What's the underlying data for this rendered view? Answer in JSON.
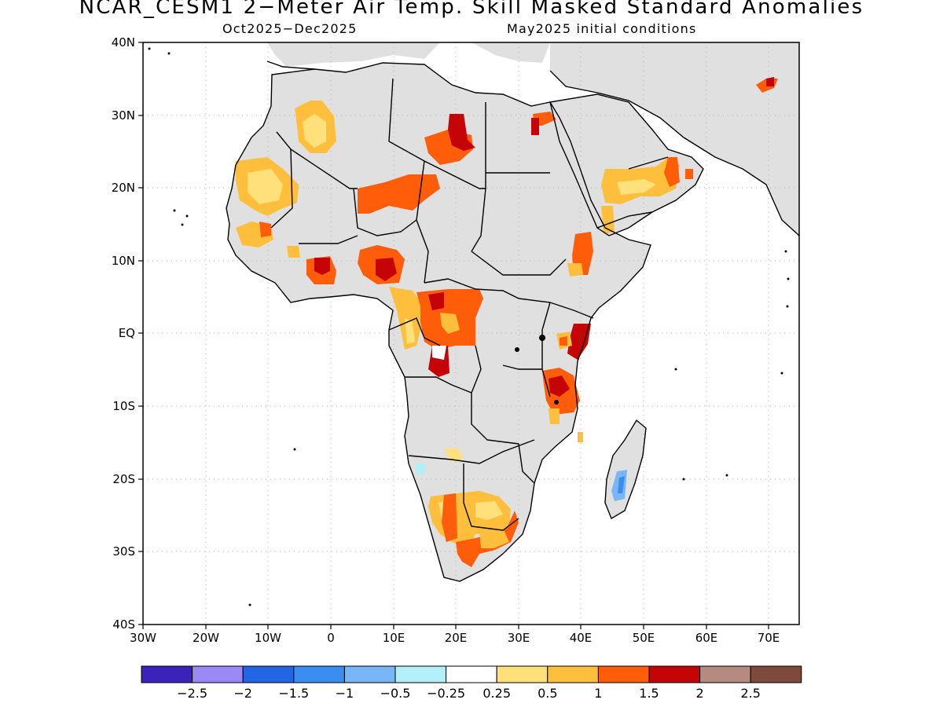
{
  "title": "NCAR_CESM1 2−Meter Air Temp. Skill Masked Standard Anomalies",
  "subtitle_left": "Oct2025−Dec2025",
  "subtitle_right": "May2025 initial conditions",
  "lat_labels": [
    "40N",
    "30N",
    "20N",
    "10N",
    "EQ",
    "10S",
    "20S",
    "30S",
    "40S"
  ],
  "lon_labels": [
    "30W",
    "20W",
    "10W",
    "0",
    "10E",
    "20E",
    "30E",
    "40E",
    "50E",
    "60E",
    "70E"
  ],
  "colorbar": {
    "colors": [
      "#3b22b8",
      "#9d89f5",
      "#2266e6",
      "#3a8ef0",
      "#79b6f7",
      "#b3eff8",
      "#ffffff",
      "#ffe07a",
      "#ffbe3b",
      "#ff5d0a",
      "#c40406",
      "#b58b80",
      "#7c4b3e"
    ],
    "labels": [
      "−2.5",
      "−2",
      "−1.5",
      "−1",
      "−0.5",
      "−0.25",
      "0.25",
      "0.5",
      "1",
      "1.5",
      "2",
      "2.5"
    ]
  },
  "map_colors": {
    "land": "#e0e0e0",
    "ocean": "#ffffff",
    "grid": "#b0b0b0",
    "border": "#000000"
  }
}
